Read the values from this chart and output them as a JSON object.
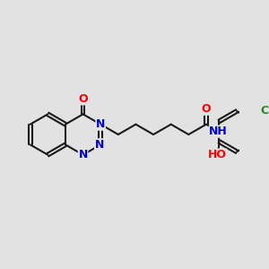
{
  "background_color": "#e2e2e2",
  "bond_color": "#1a1a1a",
  "bond_width": 1.5,
  "atom_colors": {
    "O": "#ff0000",
    "N": "#0000cc",
    "Cl": "#228b22",
    "C": "#1a1a1a",
    "H": "#666666"
  },
  "font_size": 9,
  "figsize": [
    3.0,
    3.0
  ],
  "dpi": 100
}
